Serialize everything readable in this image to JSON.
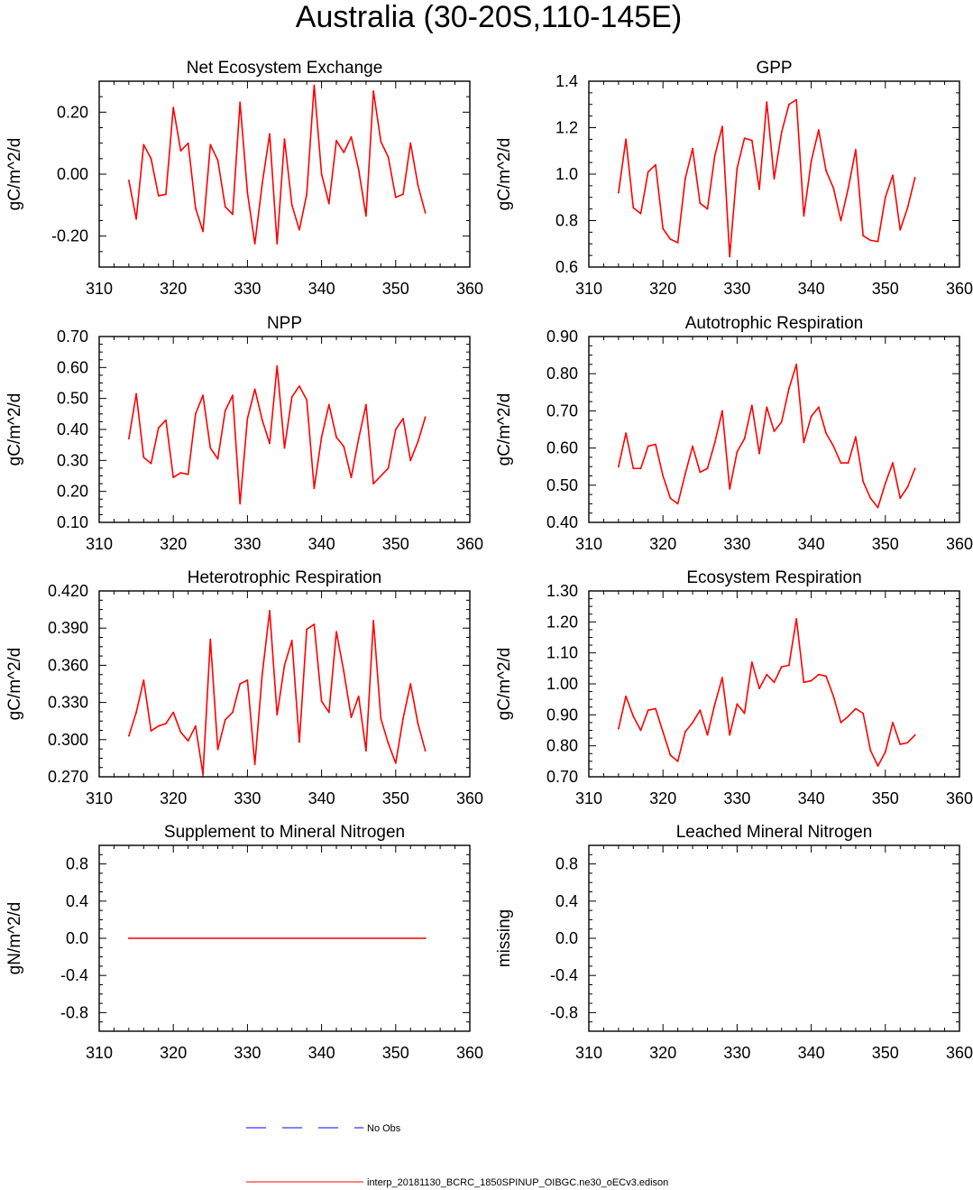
{
  "figure": {
    "title": "Australia (30-20S,110-145E)",
    "line_color": "#ff0000",
    "obs_color": "#0000ff"
  },
  "legend": {
    "obs_label": "No Obs",
    "model_label": "interp_20181130_BCRC_1850SPINUP_OIBGC.ne30_oECv3.edison"
  },
  "chart_data": [
    {
      "type": "line",
      "title": "Net Ecosystem Exchange",
      "ylabel": "gC/m^2/d",
      "xlim": [
        310,
        360
      ],
      "ylim": [
        -0.3,
        0.3
      ],
      "xticks": [
        "310",
        "320",
        "330",
        "340",
        "350",
        "360"
      ],
      "yticks": [
        -0.2,
        0.0,
        0.2
      ],
      "ytick_labels": [
        "-0.20",
        "0.00",
        "0.20"
      ],
      "x": [
        314,
        315,
        316,
        317,
        318,
        319,
        320,
        321,
        322,
        323,
        324,
        325,
        326,
        327,
        328,
        329,
        330,
        331,
        332,
        333,
        334,
        335,
        336,
        337,
        338,
        339,
        340,
        341,
        342,
        343,
        344,
        345,
        346,
        347,
        348,
        349,
        350,
        351,
        352,
        353,
        354
      ],
      "series": [
        {
          "name": "model",
          "values": [
            -0.02,
            -0.145,
            0.095,
            0.05,
            -0.07,
            -0.065,
            0.215,
            0.075,
            0.1,
            -0.11,
            -0.185,
            0.095,
            0.045,
            -0.105,
            -0.13,
            0.232,
            -0.06,
            -0.225,
            -0.03,
            0.13,
            -0.225,
            0.113,
            -0.1,
            -0.18,
            -0.065,
            0.287,
            0.0,
            -0.095,
            0.108,
            0.07,
            0.12,
            0.015,
            -0.135,
            0.268,
            0.105,
            0.055,
            -0.075,
            -0.065,
            0.1,
            -0.035,
            -0.125
          ]
        }
      ]
    },
    {
      "type": "line",
      "title": "GPP",
      "ylabel": "gC/m^2/d",
      "xlim": [
        310,
        360
      ],
      "ylim": [
        0.6,
        1.4
      ],
      "xticks": [
        "310",
        "320",
        "330",
        "340",
        "350",
        "360"
      ],
      "yticks": [
        0.6,
        0.8,
        1.0,
        1.2,
        1.4
      ],
      "ytick_labels": [
        "0.6",
        "0.8",
        "1.0",
        "1.2",
        "1.4"
      ],
      "x": [
        314,
        315,
        316,
        317,
        318,
        319,
        320,
        321,
        322,
        323,
        324,
        325,
        326,
        327,
        328,
        329,
        330,
        331,
        332,
        333,
        334,
        335,
        336,
        337,
        338,
        339,
        340,
        341,
        342,
        343,
        344,
        345,
        346,
        347,
        348,
        349,
        350,
        351,
        352,
        353,
        354
      ],
      "series": [
        {
          "name": "model",
          "values": [
            0.92,
            1.15,
            0.855,
            0.83,
            1.01,
            1.04,
            0.765,
            0.72,
            0.705,
            0.98,
            1.11,
            0.875,
            0.85,
            1.08,
            1.205,
            0.645,
            1.025,
            1.155,
            1.145,
            0.935,
            1.31,
            0.98,
            1.18,
            1.3,
            1.32,
            0.82,
            1.055,
            1.19,
            1.015,
            0.94,
            0.8,
            0.94,
            1.105,
            0.735,
            0.715,
            0.71,
            0.9,
            0.995,
            0.76,
            0.855,
            0.985
          ]
        }
      ]
    },
    {
      "type": "line",
      "title": "NPP",
      "ylabel": "gC/m^2/d",
      "xlim": [
        310,
        360
      ],
      "ylim": [
        0.1,
        0.7
      ],
      "xticks": [
        "310",
        "320",
        "330",
        "340",
        "350",
        "360"
      ],
      "yticks": [
        0.1,
        0.2,
        0.3,
        0.4,
        0.5,
        0.6,
        0.7
      ],
      "ytick_labels": [
        "0.10",
        "0.20",
        "0.30",
        "0.40",
        "0.50",
        "0.60",
        "0.70"
      ],
      "x": [
        314,
        315,
        316,
        317,
        318,
        319,
        320,
        321,
        322,
        323,
        324,
        325,
        326,
        327,
        328,
        329,
        330,
        331,
        332,
        333,
        334,
        335,
        336,
        337,
        338,
        339,
        340,
        341,
        342,
        343,
        344,
        345,
        346,
        347,
        348,
        349,
        350,
        351,
        352,
        353,
        354
      ],
      "series": [
        {
          "name": "model",
          "values": [
            0.37,
            0.515,
            0.31,
            0.29,
            0.405,
            0.43,
            0.245,
            0.26,
            0.255,
            0.45,
            0.51,
            0.34,
            0.305,
            0.46,
            0.51,
            0.16,
            0.435,
            0.53,
            0.43,
            0.355,
            0.605,
            0.34,
            0.505,
            0.54,
            0.495,
            0.21,
            0.375,
            0.48,
            0.375,
            0.345,
            0.245,
            0.37,
            0.48,
            0.225,
            0.25,
            0.275,
            0.4,
            0.435,
            0.3,
            0.36,
            0.44
          ]
        }
      ]
    },
    {
      "type": "line",
      "title": "Autotrophic Respiration",
      "ylabel": "gC/m^2/d",
      "xlim": [
        310,
        360
      ],
      "ylim": [
        0.4,
        0.9
      ],
      "xticks": [
        "310",
        "320",
        "330",
        "340",
        "350",
        "360"
      ],
      "yticks": [
        0.4,
        0.5,
        0.6,
        0.7,
        0.8,
        0.9
      ],
      "ytick_labels": [
        "0.40",
        "0.50",
        "0.60",
        "0.70",
        "0.80",
        "0.90"
      ],
      "x": [
        314,
        315,
        316,
        317,
        318,
        319,
        320,
        321,
        322,
        323,
        324,
        325,
        326,
        327,
        328,
        329,
        330,
        331,
        332,
        333,
        334,
        335,
        336,
        337,
        338,
        339,
        340,
        341,
        342,
        343,
        344,
        345,
        346,
        347,
        348,
        349,
        350,
        351,
        352,
        353,
        354
      ],
      "series": [
        {
          "name": "model",
          "values": [
            0.55,
            0.64,
            0.545,
            0.545,
            0.605,
            0.61,
            0.525,
            0.465,
            0.45,
            0.53,
            0.605,
            0.535,
            0.545,
            0.615,
            0.7,
            0.49,
            0.59,
            0.625,
            0.715,
            0.585,
            0.71,
            0.645,
            0.67,
            0.76,
            0.825,
            0.615,
            0.685,
            0.71,
            0.64,
            0.605,
            0.56,
            0.56,
            0.63,
            0.51,
            0.465,
            0.44,
            0.505,
            0.56,
            0.465,
            0.495,
            0.545
          ]
        }
      ]
    },
    {
      "type": "line",
      "title": "Heterotrophic Respiration",
      "ylabel": "gC/m^2/d",
      "xlim": [
        310,
        360
      ],
      "ylim": [
        0.27,
        0.42
      ],
      "xticks": [
        "310",
        "320",
        "330",
        "340",
        "350",
        "360"
      ],
      "yticks": [
        0.27,
        0.3,
        0.33,
        0.36,
        0.39,
        0.42
      ],
      "ytick_labels": [
        "0.270",
        "0.300",
        "0.330",
        "0.360",
        "0.390",
        "0.420"
      ],
      "x": [
        314,
        315,
        316,
        317,
        318,
        319,
        320,
        321,
        322,
        323,
        324,
        325,
        326,
        327,
        328,
        329,
        330,
        331,
        332,
        333,
        334,
        335,
        336,
        337,
        338,
        339,
        340,
        341,
        342,
        343,
        344,
        345,
        346,
        347,
        348,
        349,
        350,
        351,
        352,
        353,
        354
      ],
      "series": [
        {
          "name": "model",
          "values": [
            0.303,
            0.322,
            0.348,
            0.307,
            0.311,
            0.313,
            0.322,
            0.306,
            0.299,
            0.311,
            0.272,
            0.381,
            0.292,
            0.316,
            0.322,
            0.345,
            0.348,
            0.28,
            0.353,
            0.404,
            0.32,
            0.36,
            0.38,
            0.298,
            0.389,
            0.393,
            0.331,
            0.322,
            0.387,
            0.355,
            0.318,
            0.335,
            0.291,
            0.396,
            0.317,
            0.297,
            0.281,
            0.317,
            0.345,
            0.313,
            0.291
          ]
        }
      ]
    },
    {
      "type": "line",
      "title": "Ecosystem Respiration",
      "ylabel": "gC/m^2/d",
      "xlim": [
        310,
        360
      ],
      "ylim": [
        0.7,
        1.3
      ],
      "xticks": [
        "310",
        "320",
        "330",
        "340",
        "350",
        "360"
      ],
      "yticks": [
        0.7,
        0.8,
        0.9,
        1.0,
        1.1,
        1.2,
        1.3
      ],
      "ytick_labels": [
        "0.70",
        "0.80",
        "0.90",
        "1.00",
        "1.10",
        "1.20",
        "1.30"
      ],
      "x": [
        314,
        315,
        316,
        317,
        318,
        319,
        320,
        321,
        322,
        323,
        324,
        325,
        326,
        327,
        328,
        329,
        330,
        331,
        332,
        333,
        334,
        335,
        336,
        337,
        338,
        339,
        340,
        341,
        342,
        343,
        344,
        345,
        346,
        347,
        348,
        349,
        350,
        351,
        352,
        353,
        354
      ],
      "series": [
        {
          "name": "model",
          "values": [
            0.855,
            0.96,
            0.895,
            0.85,
            0.915,
            0.92,
            0.845,
            0.77,
            0.75,
            0.845,
            0.875,
            0.915,
            0.835,
            0.935,
            1.02,
            0.835,
            0.935,
            0.905,
            1.07,
            0.985,
            1.03,
            1.005,
            1.055,
            1.06,
            1.21,
            1.005,
            1.01,
            1.03,
            1.025,
            0.96,
            0.875,
            0.895,
            0.92,
            0.905,
            0.785,
            0.735,
            0.78,
            0.875,
            0.805,
            0.81,
            0.835
          ]
        }
      ]
    },
    {
      "type": "line",
      "title": "Supplement to Mineral Nitrogen",
      "ylabel": "gN/m^2/d",
      "xlim": [
        310,
        360
      ],
      "ylim": [
        -1.0,
        1.0
      ],
      "xticks": [
        "310",
        "320",
        "330",
        "340",
        "350",
        "360"
      ],
      "yticks": [
        -0.8,
        -0.4,
        0.0,
        0.4,
        0.8
      ],
      "ytick_labels": [
        "-0.8",
        "-0.4",
        "0.0",
        "0.4",
        "0.8"
      ],
      "x": [
        314,
        354
      ],
      "series": [
        {
          "name": "model",
          "values": [
            0.0,
            0.0
          ]
        }
      ]
    },
    {
      "type": "line",
      "title": "Leached Mineral Nitrogen",
      "ylabel": "missing",
      "xlim": [
        310,
        360
      ],
      "ylim": [
        -1.0,
        1.0
      ],
      "xticks": [
        "310",
        "320",
        "330",
        "340",
        "350",
        "360"
      ],
      "yticks": [
        -0.8,
        -0.4,
        0.0,
        0.4,
        0.8
      ],
      "ytick_labels": [
        "-0.8",
        "-0.4",
        "0.0",
        "0.4",
        "0.8"
      ],
      "x": [],
      "series": []
    }
  ]
}
